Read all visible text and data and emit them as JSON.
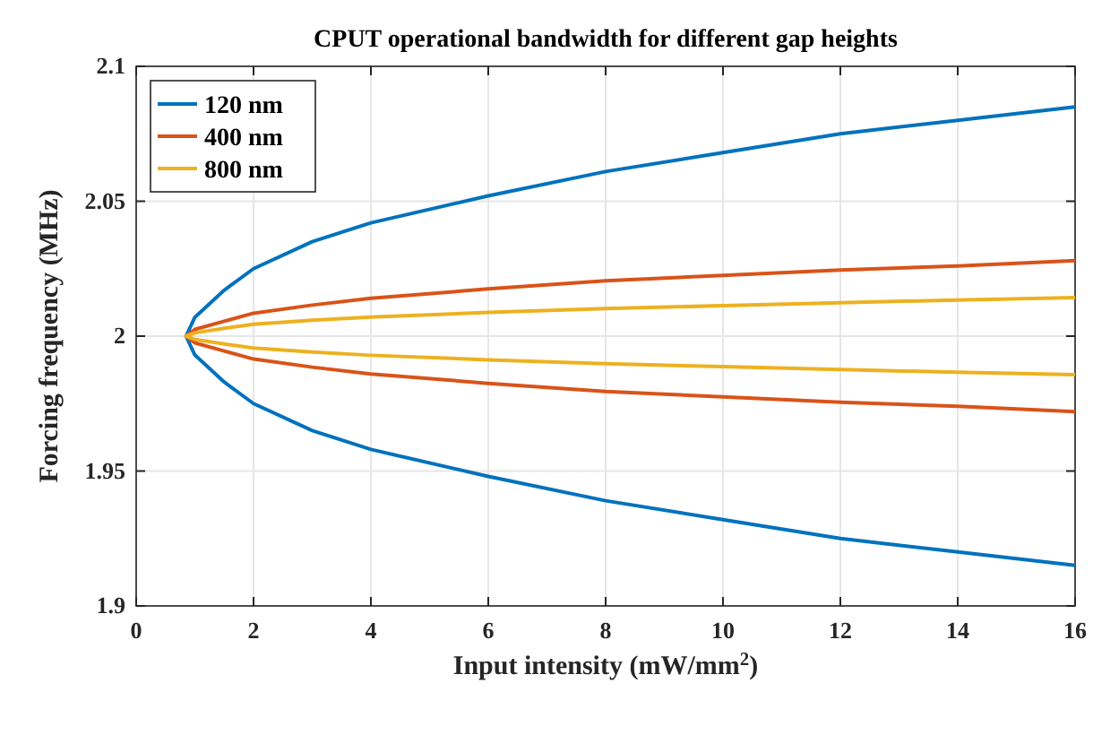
{
  "chart_data": {
    "type": "line",
    "title": "CPUT operational bandwidth for different gap heights",
    "xlabel": "Input intensity (mW/mm$^{2}$)",
    "ylabel": "Forcing frequency (MHz)",
    "xlim": [
      0,
      16
    ],
    "ylim": [
      1.9,
      2.1
    ],
    "xticks": [
      0,
      2,
      4,
      6,
      8,
      10,
      12,
      14,
      16
    ],
    "yticks": [
      1.9,
      1.95,
      2,
      2.05,
      2.1
    ],
    "grid": true,
    "legend": "top left",
    "marker": "none",
    "line_style": "solid",
    "x": [
      16,
      14,
      12,
      10,
      8,
      6,
      4,
      3,
      2,
      1.5,
      1,
      0.85,
      1,
      1.5,
      2,
      3,
      4,
      6,
      8,
      10,
      12,
      14,
      16
    ],
    "series": [
      {
        "name": "120 nm",
        "color": "#0072bd",
        "values": [
          2.085,
          2.08,
          2.075,
          2.068,
          2.061,
          2.052,
          2.042,
          2.035,
          2.025,
          2.017,
          2.007,
          2,
          1.993,
          1.983,
          1.975,
          1.965,
          1.958,
          1.948,
          1.939,
          1.932,
          1.925,
          1.92,
          1.915
        ]
      },
      {
        "name": "400 nm",
        "color": "#d95319",
        "values": [
          2.028,
          2.026,
          2.0245,
          2.0225,
          2.0205,
          2.0175,
          2.014,
          2.0115,
          2.0085,
          2.0055,
          2.0025,
          2,
          1.9975,
          1.9945,
          1.9915,
          1.9885,
          1.986,
          1.9825,
          1.9795,
          1.9775,
          1.9755,
          1.974,
          1.972
        ]
      },
      {
        "name": "800 nm",
        "color": "#edb120",
        "values": [
          2.0143,
          2.0134,
          2.0124,
          2.0113,
          2.0102,
          2.0088,
          2.0071,
          2.0059,
          2.0044,
          2.0029,
          2.0012,
          2,
          1.9988,
          1.9971,
          1.9956,
          1.9941,
          1.9929,
          1.9912,
          1.9898,
          1.9887,
          1.9876,
          1.9866,
          1.9857
        ]
      }
    ]
  }
}
